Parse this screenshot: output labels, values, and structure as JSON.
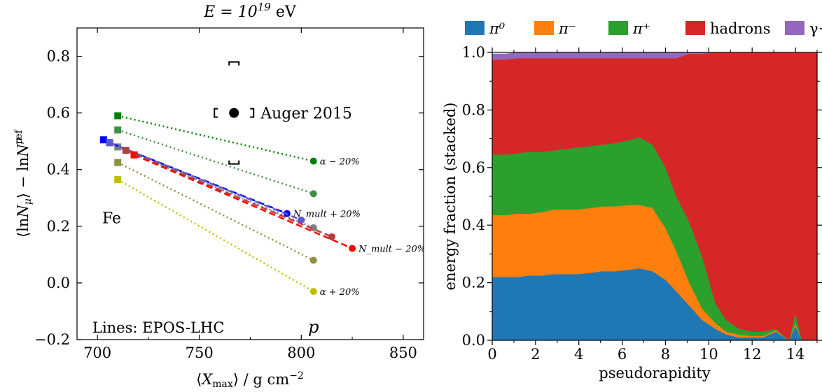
{
  "chart_data": [
    {
      "type": "line",
      "title": "E = 10^19 eV",
      "xlabel": "⟨X_max⟩ / g cm⁻²",
      "ylabel": "⟨ln N_μ⟩ − ln N_μ^ref",
      "xlim": [
        690,
        860
      ],
      "ylim": [
        -0.2,
        0.9
      ],
      "xticks": [
        700,
        750,
        800,
        850
      ],
      "yticks": [
        -0.2,
        0.0,
        0.2,
        0.4,
        0.6,
        0.8
      ],
      "series": [
        {
          "name": "α − 20%",
          "color": "#008000",
          "style": "dotted",
          "x": [
            710,
            806
          ],
          "y": [
            0.59,
            0.43
          ]
        },
        {
          "name": "",
          "color": "#3f8f3f",
          "style": "dotted",
          "x": [
            710,
            806
          ],
          "y": [
            0.54,
            0.315
          ]
        },
        {
          "name": "",
          "color": "#808080",
          "style": "dotted",
          "x": [
            710,
            806
          ],
          "y": [
            0.48,
            0.195
          ]
        },
        {
          "name": "",
          "color": "#8f8f3f",
          "style": "dotted",
          "x": [
            710,
            806
          ],
          "y": [
            0.425,
            0.08
          ]
        },
        {
          "name": "α + 20%",
          "color": "#bfbf00",
          "style": "dotted",
          "x": [
            710,
            806
          ],
          "y": [
            0.365,
            -0.03
          ]
        },
        {
          "name": "N_mult + 20%",
          "color": "#0000ff",
          "style": "dashed",
          "x": [
            703,
            706,
            793
          ],
          "y": [
            0.505,
            0.495,
            0.245
          ]
        },
        {
          "name": "",
          "color": "#5a5acc",
          "style": "dashed",
          "x": [
            706,
            800
          ],
          "y": [
            0.495,
            0.222
          ]
        },
        {
          "name": "N_mult − 20%",
          "color": "#ff0000",
          "style": "dashed",
          "x": [
            718,
            825
          ],
          "y": [
            0.452,
            0.122
          ]
        },
        {
          "name": "",
          "color": "#b04040",
          "style": "dashed",
          "x": [
            714,
            815
          ],
          "y": [
            0.468,
            0.163
          ]
        }
      ],
      "auger": {
        "label": "Auger 2015",
        "x": 767,
        "y": 0.6,
        "sys_low": 0.42,
        "sys_high": 0.78
      },
      "annotations": {
        "fe": "Fe",
        "p": "p",
        "lines": "Lines: EPOS-LHC"
      }
    },
    {
      "type": "area",
      "xlabel": "pseudorapidity",
      "ylabel": "energy fraction (stacked)",
      "xlim": [
        0,
        15
      ],
      "ylim": [
        0,
        1.0
      ],
      "xticks": [
        0,
        2,
        4,
        6,
        8,
        10,
        12,
        14
      ],
      "yticks": [
        0.0,
        0.2,
        0.4,
        0.6,
        0.8,
        1.0
      ],
      "legend_position": "top",
      "x": [
        0,
        0.6,
        1.2,
        1.7,
        2.3,
        2.9,
        3.4,
        4.0,
        4.6,
        5.1,
        5.7,
        6.3,
        6.8,
        7.4,
        8.0,
        8.5,
        9.1,
        9.7,
        10.3,
        10.8,
        11.4,
        12.0,
        12.5,
        13.1,
        13.7,
        14.0,
        14.3,
        15.0
      ],
      "series": [
        {
          "name": "π⁰",
          "color": "#1f77b4",
          "values": [
            0.22,
            0.22,
            0.22,
            0.225,
            0.225,
            0.23,
            0.23,
            0.23,
            0.235,
            0.24,
            0.24,
            0.245,
            0.25,
            0.24,
            0.21,
            0.17,
            0.12,
            0.07,
            0.04,
            0.02,
            0.01,
            0.01,
            0.01,
            0.03,
            0.0,
            0.05,
            0.0,
            0.0
          ]
        },
        {
          "name": "π⁻",
          "color": "#ff7f0e",
          "values": [
            0.215,
            0.215,
            0.22,
            0.215,
            0.22,
            0.225,
            0.225,
            0.225,
            0.225,
            0.225,
            0.225,
            0.225,
            0.22,
            0.22,
            0.18,
            0.14,
            0.08,
            0.04,
            0.02,
            0.01,
            0.01,
            0.005,
            0.005,
            0.005,
            0.0,
            0.01,
            0.0,
            0.0
          ]
        },
        {
          "name": "π⁺",
          "color": "#2ca02c",
          "values": [
            0.21,
            0.21,
            0.21,
            0.215,
            0.21,
            0.205,
            0.21,
            0.215,
            0.215,
            0.215,
            0.22,
            0.225,
            0.235,
            0.22,
            0.21,
            0.19,
            0.21,
            0.18,
            0.07,
            0.04,
            0.02,
            0.015,
            0.015,
            0.005,
            0.0,
            0.035,
            0.0,
            0.0
          ]
        },
        {
          "name": "hadrons",
          "color": "#d62728",
          "values": [
            0.33,
            0.33,
            0.33,
            0.325,
            0.325,
            0.32,
            0.315,
            0.31,
            0.305,
            0.3,
            0.295,
            0.285,
            0.275,
            0.3,
            0.38,
            0.48,
            0.585,
            0.705,
            0.87,
            0.93,
            0.96,
            0.97,
            0.97,
            0.96,
            1.0,
            0.905,
            1.0,
            1.0
          ]
        },
        {
          "name": "γ+leptons",
          "color": "#9467bd",
          "values": [
            0.02,
            0.02,
            0.02,
            0.02,
            0.02,
            0.02,
            0.02,
            0.02,
            0.02,
            0.02,
            0.02,
            0.02,
            0.02,
            0.02,
            0.02,
            0.02,
            0.005,
            0.005,
            0.0,
            0.0,
            0.0,
            0.0,
            0.0,
            0.0,
            0.0,
            0.0,
            0.0,
            0.0
          ]
        }
      ]
    }
  ]
}
